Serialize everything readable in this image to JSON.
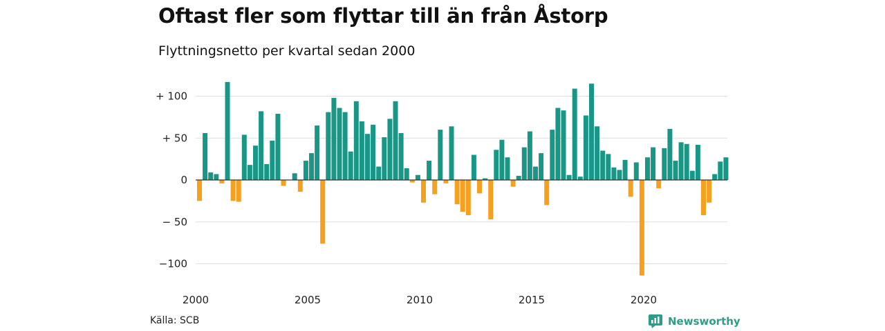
{
  "title": "Oftast fler som flyttar till än från Åstorp",
  "subtitle": "Flyttningsnetto per kvartal sedan 2000",
  "source": "Källa: SCB",
  "brand": "Newsworthy",
  "colors": {
    "positive": "#1a9686",
    "negative": "#f5a01f",
    "grid": "#dddddd",
    "axis": "#333333",
    "brand": "#2d9c89"
  },
  "chart_data": {
    "type": "bar",
    "x_start": 2000,
    "periods_per_year": 4,
    "ylim": [
      -110,
      120
    ],
    "yticks": [
      {
        "value": 100,
        "label": "+ 100"
      },
      {
        "value": 50,
        "label": "+  50"
      },
      {
        "value": 0,
        "label": "0"
      },
      {
        "value": -50,
        "label": "− 50"
      },
      {
        "value": -100,
        "label": "−100"
      }
    ],
    "xticks": [
      "2000",
      "2005",
      "2010",
      "2015",
      "2020"
    ],
    "values": [
      -25,
      56,
      9,
      7,
      -4,
      117,
      -25,
      -26,
      54,
      18,
      41,
      82,
      19,
      47,
      79,
      -7,
      0,
      8,
      -14,
      23,
      32,
      65,
      -76,
      81,
      98,
      86,
      81,
      34,
      94,
      70,
      55,
      66,
      16,
      51,
      73,
      94,
      56,
      14,
      -3,
      6,
      -27,
      23,
      -17,
      60,
      -4,
      64,
      -29,
      -38,
      -42,
      30,
      -16,
      2,
      -47,
      36,
      48,
      27,
      -8,
      5,
      39,
      58,
      16,
      32,
      -30,
      60,
      86,
      83,
      6,
      109,
      4,
      77,
      115,
      64,
      35,
      31,
      15,
      12,
      24,
      -20,
      21,
      -114,
      27,
      39,
      -10,
      38,
      61,
      23,
      45,
      43,
      11,
      42,
      -42,
      -27,
      7,
      22,
      27
    ]
  }
}
